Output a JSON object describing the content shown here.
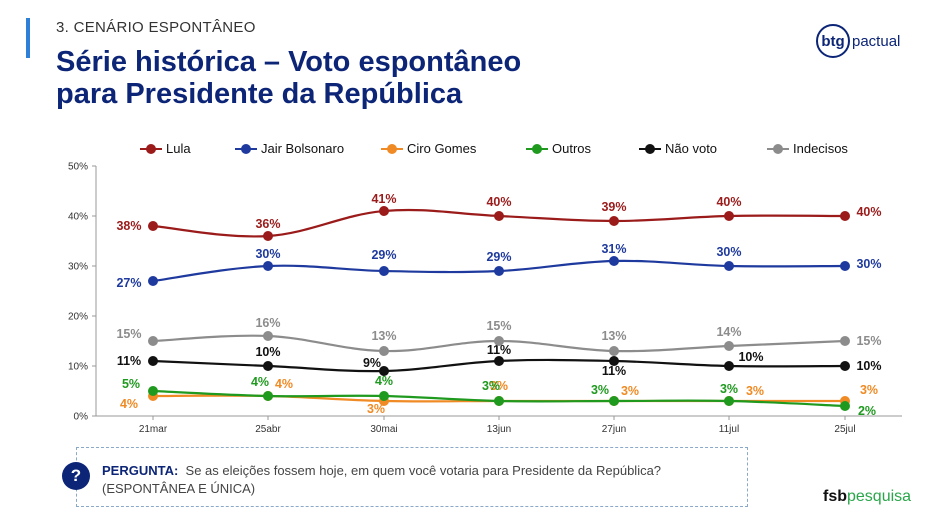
{
  "header": {
    "section": "3. CENÁRIO ESPONTÂNEO",
    "title_line1": "Série histórica – Voto espontâneo",
    "title_line2": "para Presidente da República"
  },
  "logos": {
    "btg_mark": "btg",
    "btg_text": "pactual",
    "fsb_a": "fsb",
    "fsb_b": "pesquisa"
  },
  "question": {
    "icon": "?",
    "label": "PERGUNTA:",
    "text": "Se as eleições fossem hoje, em quem você votaria para Presidente da República?",
    "note": "(ESPONTÂNEA E ÚNICA)"
  },
  "chart_data": {
    "type": "line",
    "categories": [
      "21mar",
      "25abr",
      "30mai",
      "13jun",
      "27jun",
      "11jul",
      "25jul"
    ],
    "ylim": [
      0,
      50
    ],
    "yticks": [
      "0%",
      "10%",
      "20%",
      "30%",
      "40%",
      "50%"
    ],
    "grid": false,
    "legend_position": "top",
    "series": [
      {
        "name": "Lula",
        "color": "#9b1b1b",
        "values": [
          38,
          36,
          41,
          40,
          39,
          40,
          40
        ],
        "labels": [
          "38%",
          "36%",
          "41%",
          "40%",
          "39%",
          "40%",
          "40%"
        ]
      },
      {
        "name": "Jair Bolsonaro",
        "color": "#1f3a9e",
        "values": [
          27,
          30,
          29,
          29,
          31,
          30,
          30
        ],
        "labels": [
          "27%",
          "30%",
          "29%",
          "29%",
          "31%",
          "30%",
          "30%"
        ]
      },
      {
        "name": "Ciro Gomes",
        "color": "#f08a24",
        "values": [
          4,
          4,
          3,
          3,
          3,
          3,
          3
        ],
        "labels": [
          "4%",
          "4%",
          "3%",
          "3%",
          "3%",
          "3%",
          "3%"
        ]
      },
      {
        "name": "Outros",
        "color": "#1f9a1f",
        "values": [
          5,
          4,
          4,
          3,
          3,
          3,
          2
        ],
        "labels": [
          "5%",
          "4%",
          "4%",
          "3%",
          "3%",
          "3%",
          "2%"
        ]
      },
      {
        "name": "Não voto",
        "color": "#111111",
        "values": [
          11,
          10,
          9,
          11,
          11,
          10,
          10
        ],
        "labels": [
          "11%",
          "10%",
          "9%",
          "11%",
          "11%",
          "10%",
          "10%"
        ]
      },
      {
        "name": "Indecisos",
        "color": "#8c8c8c",
        "values": [
          15,
          16,
          13,
          15,
          13,
          14,
          15
        ],
        "labels": [
          "15%",
          "16%",
          "13%",
          "15%",
          "13%",
          "14%",
          "15%"
        ]
      }
    ]
  }
}
